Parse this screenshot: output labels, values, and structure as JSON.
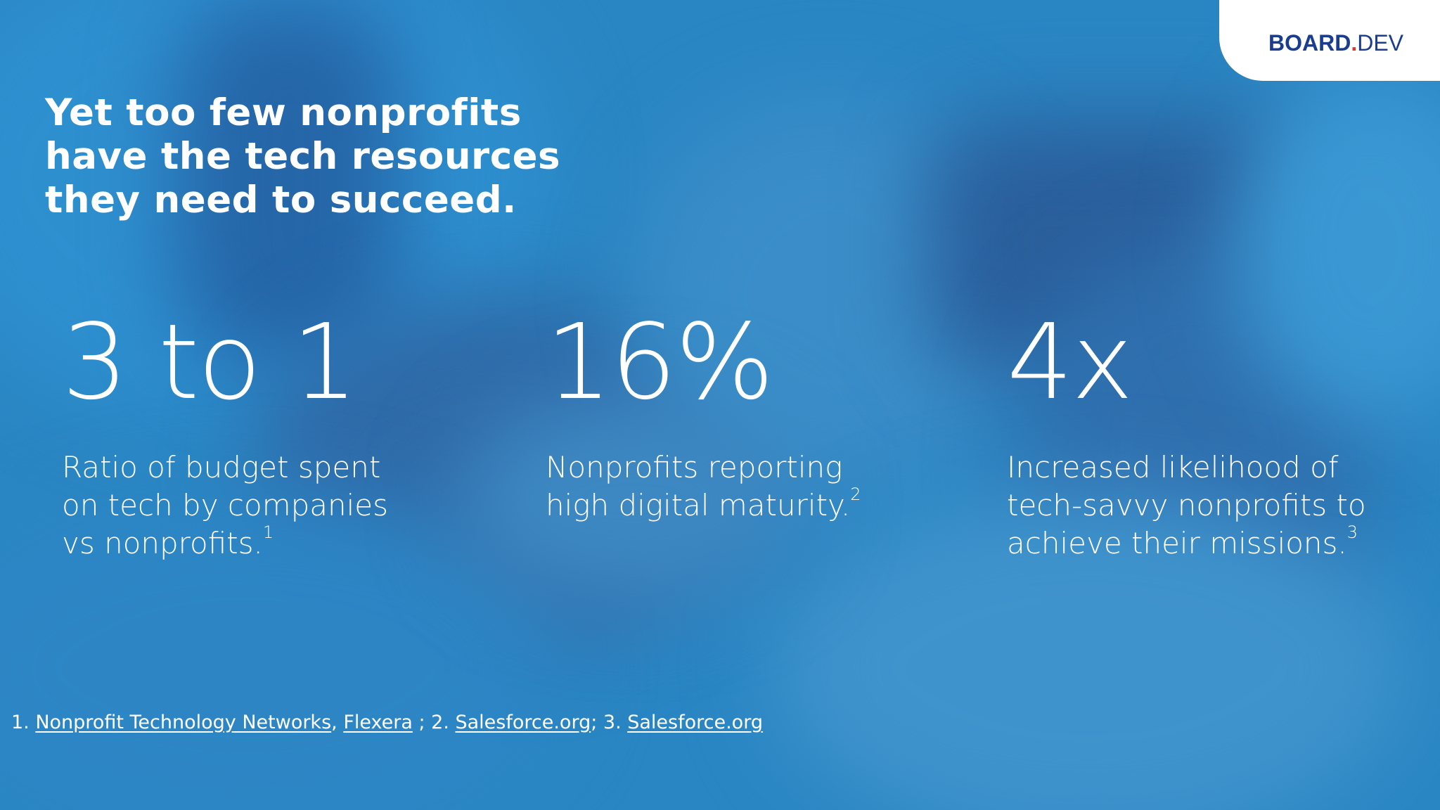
{
  "logo": {
    "part1": "BOARD",
    "dot": ".",
    "part2": "DEV"
  },
  "headline": {
    "line1": "Yet too few nonprofits",
    "line2": "have the tech resources",
    "line3": "they need to succeed."
  },
  "stats": [
    {
      "value": "3 to 1",
      "lines": [
        "Ratio of budget spent",
        "on tech by companies",
        "vs nonprofits."
      ],
      "ref": "1"
    },
    {
      "value": "16%",
      "lines": [
        "Nonprofits reporting",
        "high digital maturity."
      ],
      "ref": "2"
    },
    {
      "value": "4x",
      "lines": [
        "Increased likelihood of",
        "tech-savvy nonprofits to",
        "achieve their missions."
      ],
      "ref": "3"
    }
  ],
  "footnote": {
    "prefix1": "1. ",
    "link1": "Nonprofit Technology Networks",
    "sep1": ", ",
    "link2": "Flexera",
    "sep2": " ; 2. ",
    "link3": "Salesforce.org",
    "sep3": "; 3. ",
    "link4": "Salesforce.org"
  }
}
